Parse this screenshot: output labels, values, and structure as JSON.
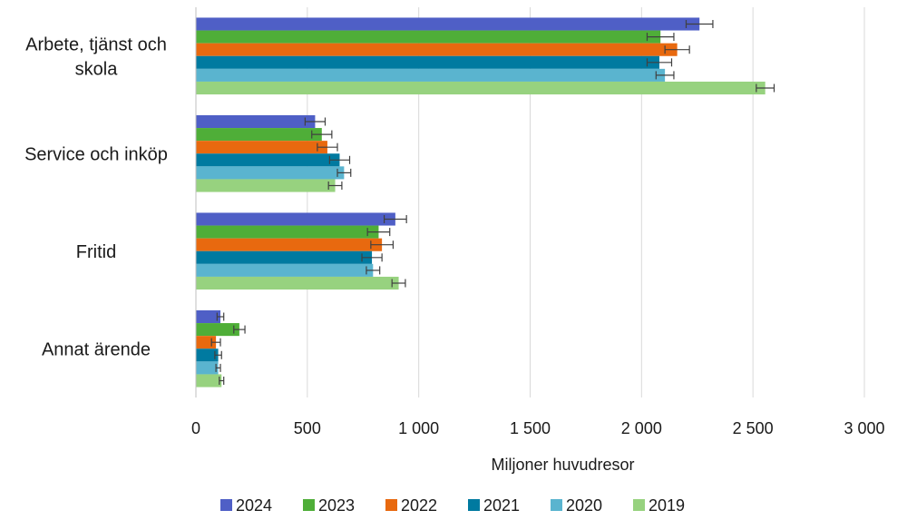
{
  "chart_data": {
    "type": "bar",
    "orientation": "horizontal",
    "categories": [
      [
        "Arbete, tjänst och",
        "skola"
      ],
      [
        "Service och inköp"
      ],
      [
        "Fritid"
      ],
      [
        "Annat ärende"
      ]
    ],
    "series": [
      {
        "name": "2024",
        "color": "#4f5fc6",
        "values": [
          2260,
          535,
          895,
          110
        ],
        "errors": [
          60,
          45,
          50,
          15
        ]
      },
      {
        "name": "2023",
        "color": "#4fae38",
        "values": [
          2085,
          565,
          820,
          195
        ],
        "errors": [
          60,
          45,
          50,
          25
        ]
      },
      {
        "name": "2022",
        "color": "#e8690f",
        "values": [
          2160,
          590,
          835,
          90
        ],
        "errors": [
          55,
          45,
          50,
          20
        ]
      },
      {
        "name": "2021",
        "color": "#007aa0",
        "values": [
          2080,
          645,
          790,
          100
        ],
        "errors": [
          55,
          45,
          45,
          15
        ]
      },
      {
        "name": "2020",
        "color": "#5ab4cf",
        "values": [
          2105,
          665,
          795,
          100
        ],
        "errors": [
          40,
          30,
          30,
          10
        ]
      },
      {
        "name": "2019",
        "color": "#97d27f",
        "values": [
          2555,
          625,
          910,
          115
        ],
        "errors": [
          40,
          30,
          30,
          10
        ]
      }
    ],
    "xlabel": "Miljoner huvudresor",
    "xlim": [
      0,
      3000
    ],
    "xticks": [
      0,
      500,
      1000,
      1500,
      2000,
      2500,
      3000
    ],
    "xtick_labels": [
      "0",
      "500",
      "1 000",
      "1 500",
      "2 000",
      "2 500",
      "3 000"
    ],
    "grid": "vertical",
    "legend_position": "bottom",
    "error_bars": true
  }
}
